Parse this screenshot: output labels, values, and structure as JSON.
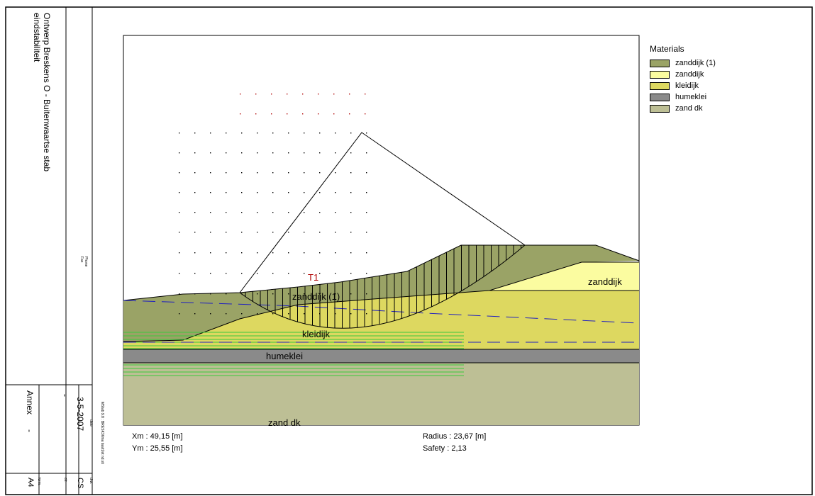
{
  "title_block": {
    "title_line1": "Ontwerp Breskens O - Buitenwaartse stab",
    "title_line2": "eindstabiliteit",
    "phone_label": "Phone",
    "fax_label": "Fax",
    "annex_label": "Annex",
    "annex_value": "-",
    "dash_value": "-",
    "date_value": "3-5-2007",
    "date_label": "date",
    "file_info": "MStab 9.8 : BRESK36ma taalr2et nd.sti",
    "drw_label": "drw.",
    "drw_value": "CS",
    "ctr_label": "ctr.",
    "form_label": "form.",
    "form_value": "A4"
  },
  "legend": {
    "title": "Materials",
    "items": [
      {
        "label": "zanddijk (1)",
        "color": "#9aa366"
      },
      {
        "label": "zanddijk",
        "color": "#fbfca0"
      },
      {
        "label": "kleidijk",
        "color": "#ddd860"
      },
      {
        "label": "humeklei",
        "color": "#8a8a8a"
      },
      {
        "label": "zand dk",
        "color": "#bdbf95"
      }
    ]
  },
  "labels": {
    "zanddijk_right": "zanddijk",
    "zanddijk1": "zanddijk (1)",
    "kleidijk": "kleidijk",
    "humeklei": "humeklei",
    "zand_dk": "zand dk",
    "t1": "T1"
  },
  "results": {
    "xm": "Xm : 49,15 [m]",
    "ym": "Ym : 25,55 [m]",
    "radius": "Radius : 23,67 [m]",
    "safety": "Safety : 2,13"
  }
}
